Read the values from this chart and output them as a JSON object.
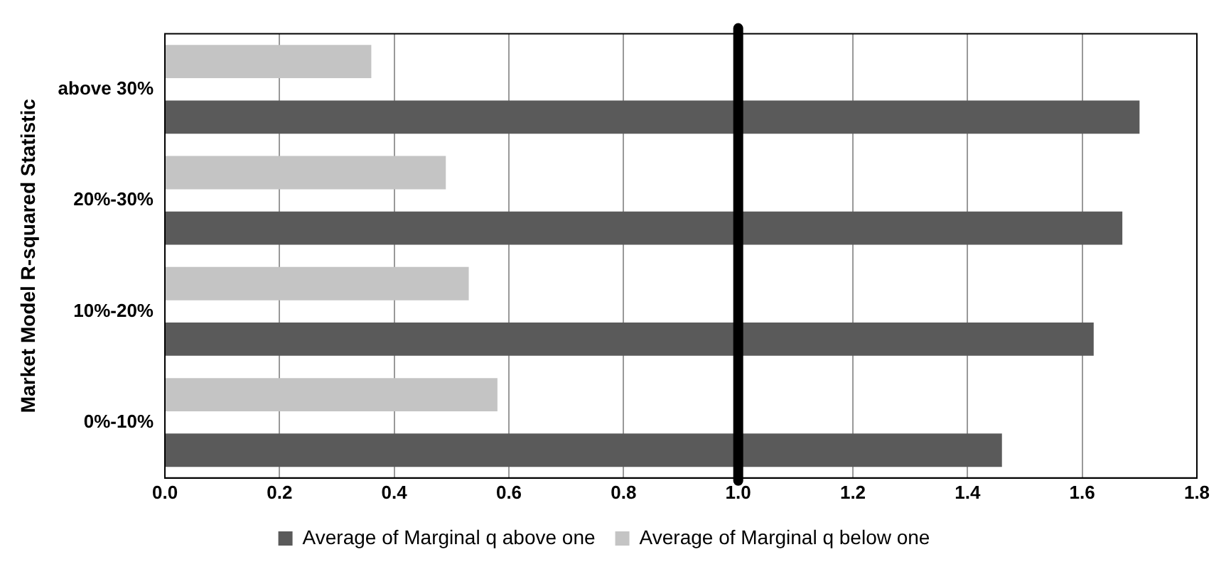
{
  "chart_data": {
    "type": "bar",
    "orientation": "horizontal",
    "ylabel": "Market Model R-squared Statistic",
    "categories": [
      "above 30%",
      "20%-30%",
      "10%-20%",
      "0%-10%"
    ],
    "series": [
      {
        "name": "Average of Marginal q above one",
        "color": "#5a5a5a",
        "values": [
          1.7,
          1.67,
          1.62,
          1.46
        ]
      },
      {
        "name": "Average of Marginal q below one",
        "color": "#c4c4c4",
        "values": [
          0.36,
          0.49,
          0.53,
          0.58
        ]
      }
    ],
    "xlim": [
      0,
      1.8
    ],
    "xticks": [
      {
        "value": 0,
        "label": "0.0"
      },
      {
        "value": 0.2,
        "label": "0.2"
      },
      {
        "value": 0.4,
        "label": "0.4"
      },
      {
        "value": 0.6,
        "label": "0.6"
      },
      {
        "value": 0.8,
        "label": "0.8"
      },
      {
        "value": 1,
        "label": "1.0"
      },
      {
        "value": 1.2,
        "label": "1.2"
      },
      {
        "value": 1.4,
        "label": "1.4"
      },
      {
        "value": 1.6,
        "label": "1.6"
      },
      {
        "value": 1.8,
        "label": "1.8"
      }
    ],
    "ref_lines": [
      {
        "axis": "x",
        "value": 1,
        "color": "#000000"
      }
    ],
    "grid": "x",
    "legend": "bottom"
  }
}
